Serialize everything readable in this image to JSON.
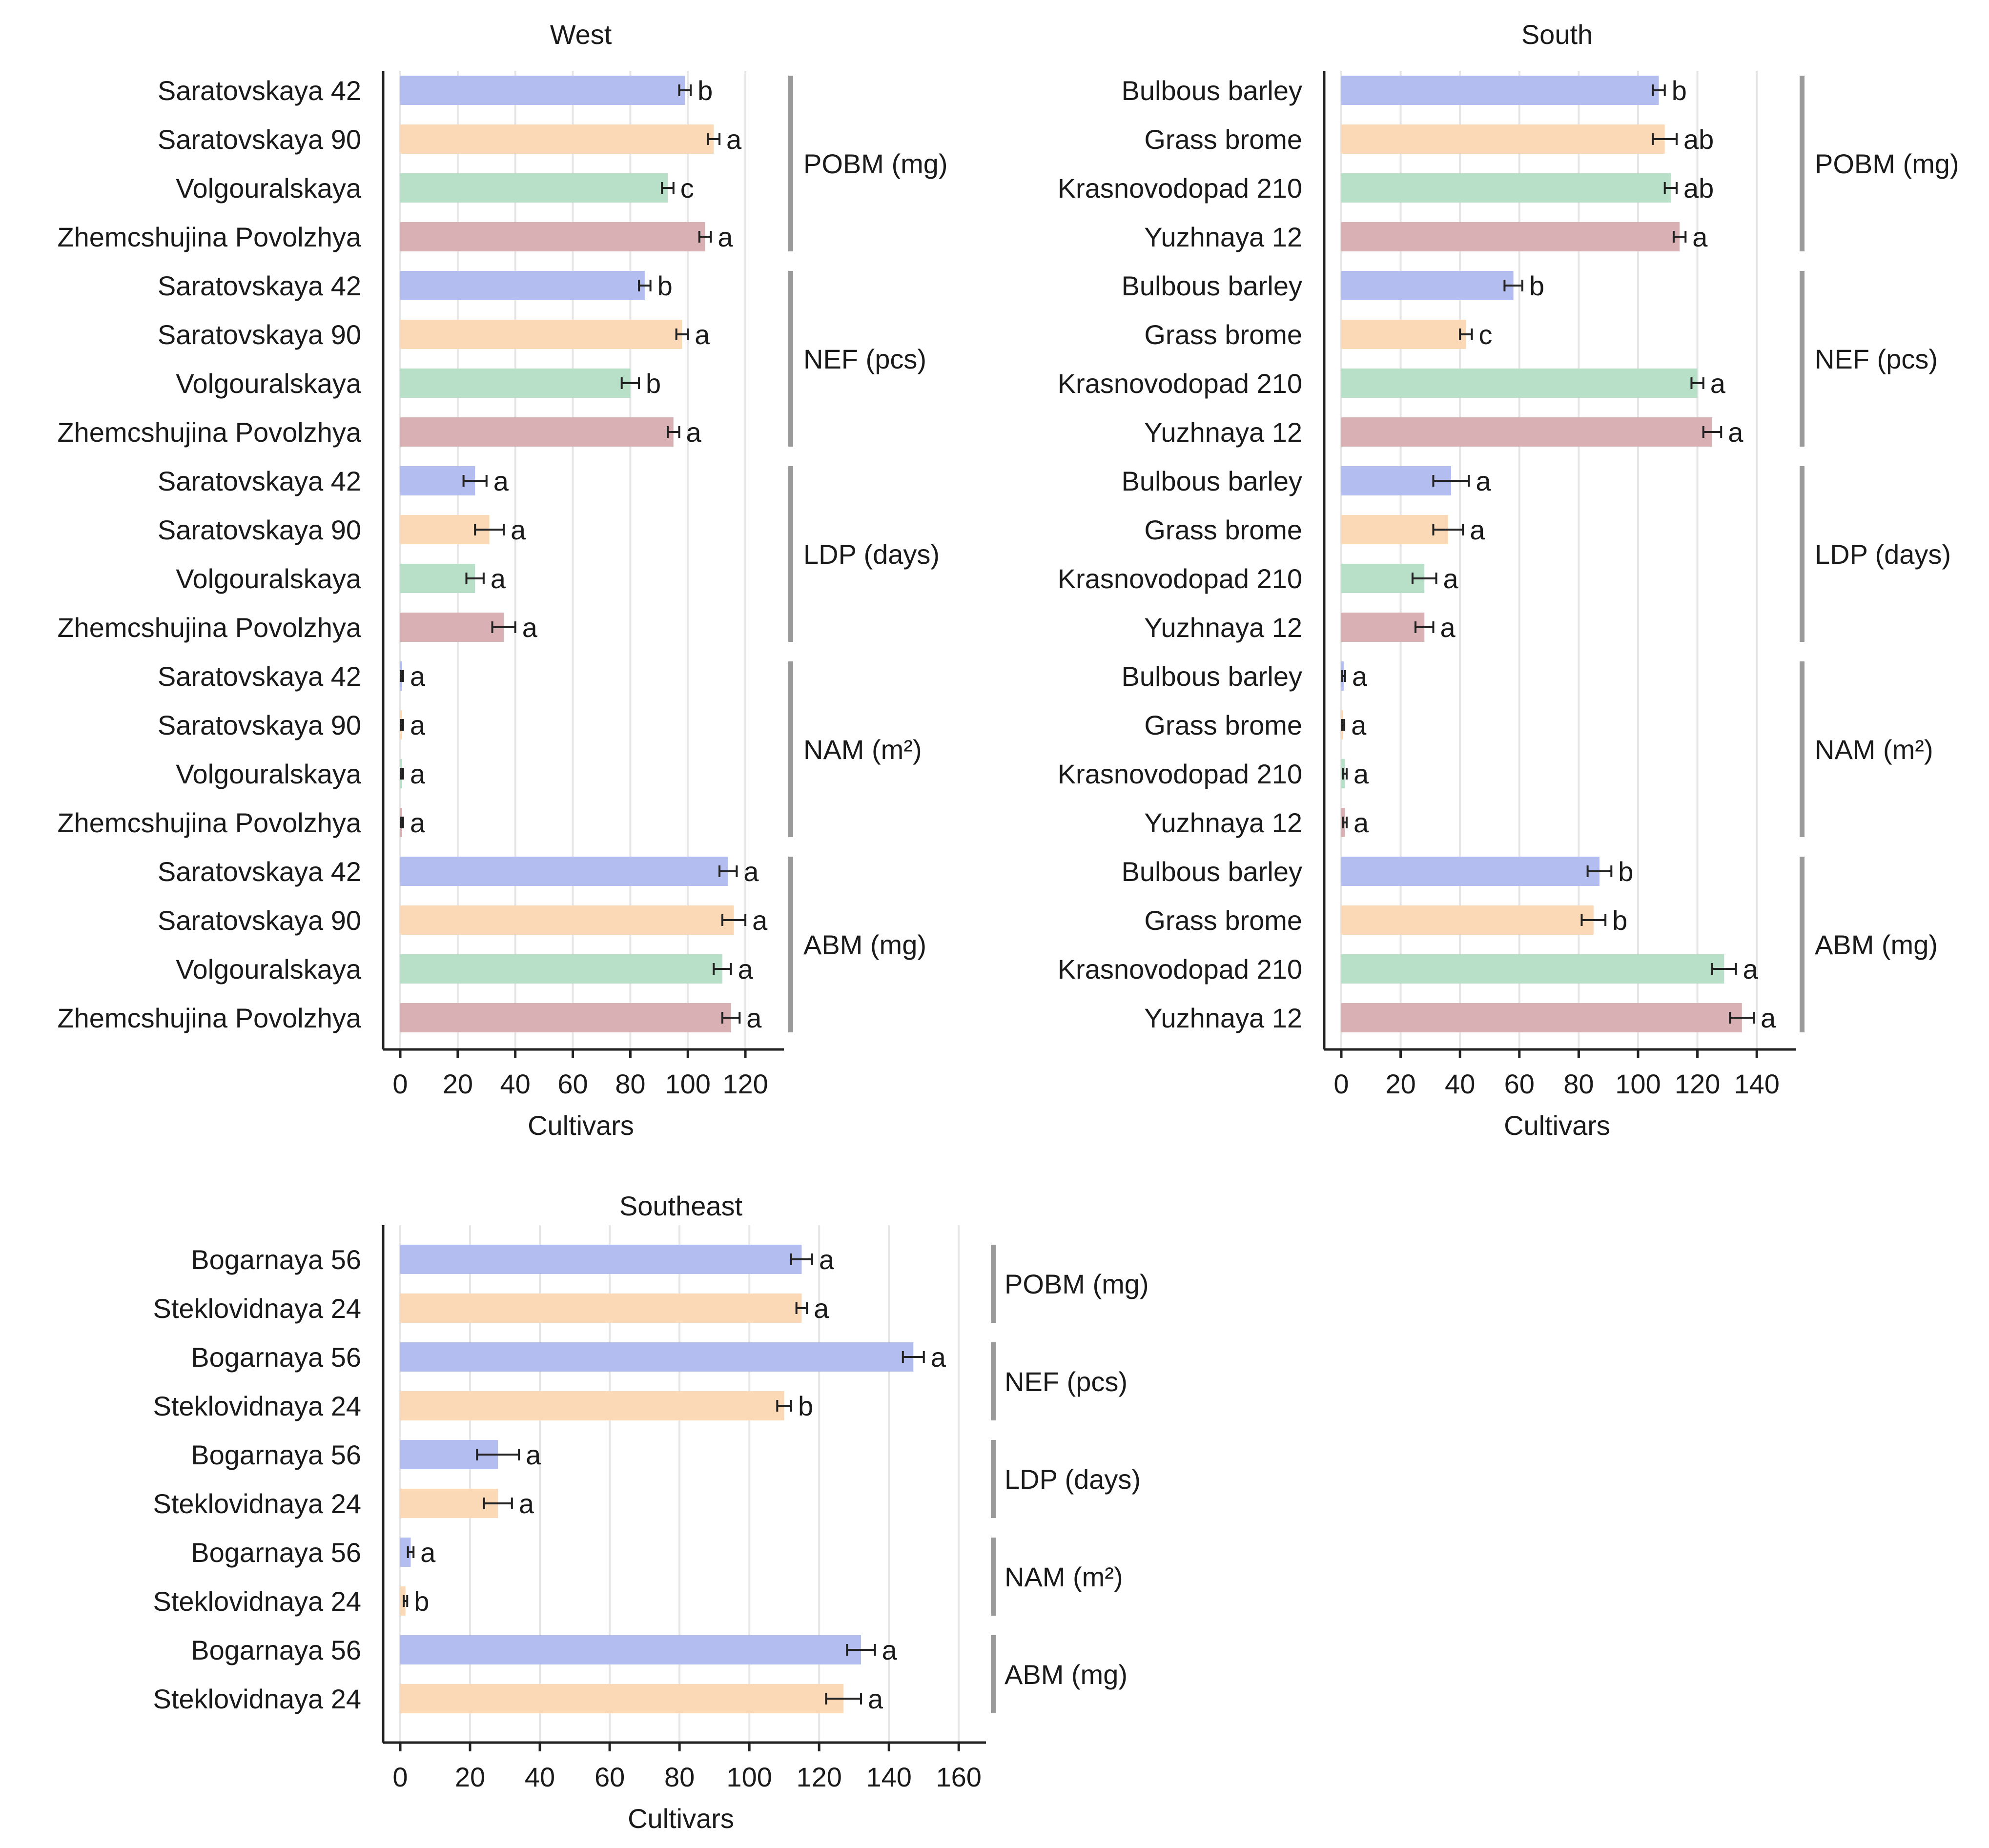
{
  "chart_data": [
    {
      "type": "bar",
      "orientation": "horizontal",
      "title": "West",
      "xlabel": "Cultivars",
      "xlim": [
        0,
        130
      ],
      "xticks": [
        0,
        20,
        40,
        60,
        80,
        100,
        120
      ],
      "colors": [
        "#b3bdf0",
        "#fcd9b6",
        "#b8dfc7",
        "#d9b1b4"
      ],
      "groups": [
        {
          "label": "POBM (mg)",
          "bars": [
            {
              "cultivar": "Saratovskaya 42",
              "value": 99,
              "err": 2,
              "sig": "b"
            },
            {
              "cultivar": "Saratovskaya 90",
              "value": 109,
              "err": 2,
              "sig": "a"
            },
            {
              "cultivar": "Volgouralskaya",
              "value": 93,
              "err": 2,
              "sig": "c"
            },
            {
              "cultivar": "Zhemcshujina Povolzhya",
              "value": 106,
              "err": 2,
              "sig": "a"
            }
          ]
        },
        {
          "label": "NEF (pcs)",
          "bars": [
            {
              "cultivar": "Saratovskaya 42",
              "value": 85,
              "err": 2,
              "sig": "b"
            },
            {
              "cultivar": "Saratovskaya 90",
              "value": 98,
              "err": 2,
              "sig": "a"
            },
            {
              "cultivar": "Volgouralskaya",
              "value": 80,
              "err": 3,
              "sig": "b"
            },
            {
              "cultivar": "Zhemcshujina Povolzhya",
              "value": 95,
              "err": 2,
              "sig": "a"
            }
          ]
        },
        {
          "label": "LDP (days)",
          "bars": [
            {
              "cultivar": "Saratovskaya 42",
              "value": 26,
              "err": 4,
              "sig": "a"
            },
            {
              "cultivar": "Saratovskaya 90",
              "value": 31,
              "err": 5,
              "sig": "a"
            },
            {
              "cultivar": "Volgouralskaya",
              "value": 26,
              "err": 3,
              "sig": "a"
            },
            {
              "cultivar": "Zhemcshujina Povolzhya",
              "value": 36,
              "err": 4,
              "sig": "a"
            }
          ]
        },
        {
          "label": "NAM (m²)",
          "bars": [
            {
              "cultivar": "Saratovskaya 42",
              "value": 0.6,
              "err": 0.4,
              "sig": "a"
            },
            {
              "cultivar": "Saratovskaya 90",
              "value": 0.6,
              "err": 0.4,
              "sig": "a"
            },
            {
              "cultivar": "Volgouralskaya",
              "value": 0.6,
              "err": 0.4,
              "sig": "a"
            },
            {
              "cultivar": "Zhemcshujina Povolzhya",
              "value": 0.6,
              "err": 0.4,
              "sig": "a"
            }
          ]
        },
        {
          "label": "ABM (mg)",
          "bars": [
            {
              "cultivar": "Saratovskaya 42",
              "value": 114,
              "err": 3,
              "sig": "a"
            },
            {
              "cultivar": "Saratovskaya 90",
              "value": 116,
              "err": 4,
              "sig": "a"
            },
            {
              "cultivar": "Volgouralskaya",
              "value": 112,
              "err": 3,
              "sig": "a"
            },
            {
              "cultivar": "Zhemcshujina Povolzhya",
              "value": 115,
              "err": 3,
              "sig": "a"
            }
          ]
        }
      ]
    },
    {
      "type": "bar",
      "orientation": "horizontal",
      "title": "South",
      "xlabel": "Cultivars",
      "xlim": [
        0,
        150
      ],
      "xticks": [
        0,
        20,
        40,
        60,
        80,
        100,
        120,
        140
      ],
      "colors": [
        "#b3bdf0",
        "#fcd9b6",
        "#b8dfc7",
        "#d9b1b4"
      ],
      "groups": [
        {
          "label": "POBM (mg)",
          "bars": [
            {
              "cultivar": "Bulbous barley",
              "value": 107,
              "err": 2,
              "sig": "b"
            },
            {
              "cultivar": "Grass brome",
              "value": 109,
              "err": 4,
              "sig": "ab"
            },
            {
              "cultivar": "Krasnovodopad 210",
              "value": 111,
              "err": 2,
              "sig": "ab"
            },
            {
              "cultivar": "Yuzhnaya 12",
              "value": 114,
              "err": 2,
              "sig": "a"
            }
          ]
        },
        {
          "label": "NEF (pcs)",
          "bars": [
            {
              "cultivar": "Bulbous barley",
              "value": 58,
              "err": 3,
              "sig": "b"
            },
            {
              "cultivar": "Grass brome",
              "value": 42,
              "err": 2,
              "sig": "c"
            },
            {
              "cultivar": "Krasnovodopad 210",
              "value": 120,
              "err": 2,
              "sig": "a"
            },
            {
              "cultivar": "Yuzhnaya 12",
              "value": 125,
              "err": 3,
              "sig": "a"
            }
          ]
        },
        {
          "label": "LDP (days)",
          "bars": [
            {
              "cultivar": "Bulbous barley",
              "value": 37,
              "err": 6,
              "sig": "a"
            },
            {
              "cultivar": "Grass brome",
              "value": 36,
              "err": 5,
              "sig": "a"
            },
            {
              "cultivar": "Krasnovodopad 210",
              "value": 28,
              "err": 4,
              "sig": "a"
            },
            {
              "cultivar": "Yuzhnaya 12",
              "value": 28,
              "err": 3,
              "sig": "a"
            }
          ]
        },
        {
          "label": "NAM (m²)",
          "bars": [
            {
              "cultivar": "Bulbous barley",
              "value": 0.8,
              "err": 0.5,
              "sig": "a"
            },
            {
              "cultivar": "Grass brome",
              "value": 0.6,
              "err": 0.4,
              "sig": "a"
            },
            {
              "cultivar": "Krasnovodopad 210",
              "value": 1.2,
              "err": 0.6,
              "sig": "a"
            },
            {
              "cultivar": "Yuzhnaya 12",
              "value": 1.2,
              "err": 0.6,
              "sig": "a"
            }
          ]
        },
        {
          "label": "ABM (mg)",
          "bars": [
            {
              "cultivar": "Bulbous barley",
              "value": 87,
              "err": 4,
              "sig": "b"
            },
            {
              "cultivar": "Grass brome",
              "value": 85,
              "err": 4,
              "sig": "b"
            },
            {
              "cultivar": "Krasnovodopad 210",
              "value": 129,
              "err": 4,
              "sig": "a"
            },
            {
              "cultivar": "Yuzhnaya 12",
              "value": 135,
              "err": 4,
              "sig": "a"
            }
          ]
        }
      ]
    },
    {
      "type": "bar",
      "orientation": "horizontal",
      "title": "Southeast",
      "xlabel": "Cultivars",
      "xlim": [
        0,
        165
      ],
      "xticks": [
        0,
        20,
        40,
        60,
        80,
        100,
        120,
        140,
        160
      ],
      "colors": [
        "#b3bdf0",
        "#fcd9b6"
      ],
      "groups": [
        {
          "label": "POBM (mg)",
          "bars": [
            {
              "cultivar": "Bogarnaya 56",
              "value": 115,
              "err": 3,
              "sig": "a"
            },
            {
              "cultivar": "Steklovidnaya 24",
              "value": 115,
              "err": 1.5,
              "sig": "a"
            }
          ]
        },
        {
          "label": "NEF (pcs)",
          "bars": [
            {
              "cultivar": "Bogarnaya 56",
              "value": 147,
              "err": 3,
              "sig": "a"
            },
            {
              "cultivar": "Steklovidnaya 24",
              "value": 110,
              "err": 2,
              "sig": "b"
            }
          ]
        },
        {
          "label": "LDP (days)",
          "bars": [
            {
              "cultivar": "Bogarnaya 56",
              "value": 28,
              "err": 6,
              "sig": "a"
            },
            {
              "cultivar": "Steklovidnaya 24",
              "value": 28,
              "err": 4,
              "sig": "a"
            }
          ]
        },
        {
          "label": "NAM (m²)",
          "bars": [
            {
              "cultivar": "Bogarnaya 56",
              "value": 3,
              "err": 0.8,
              "sig": "a"
            },
            {
              "cultivar": "Steklovidnaya 24",
              "value": 1.5,
              "err": 0.5,
              "sig": "b"
            }
          ]
        },
        {
          "label": "ABM (mg)",
          "bars": [
            {
              "cultivar": "Bogarnaya 56",
              "value": 132,
              "err": 4,
              "sig": "a"
            },
            {
              "cultivar": "Steklovidnaya 24",
              "value": 127,
              "err": 5,
              "sig": "a"
            }
          ]
        }
      ]
    }
  ]
}
